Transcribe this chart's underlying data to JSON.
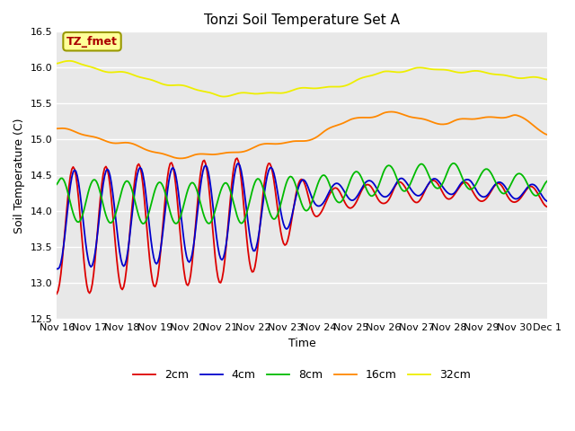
{
  "title": "Tonzi Soil Temperature Set A",
  "xlabel": "Time",
  "ylabel": "Soil Temperature (C)",
  "ylim": [
    12.5,
    16.5
  ],
  "annotation": "TZ_fmet",
  "annotation_color": "#aa0000",
  "annotation_bg": "#ffff99",
  "xtick_labels": [
    "Nov 16",
    "Nov 17",
    "Nov 18",
    "Nov 19",
    "Nov 20",
    "Nov 21",
    "Nov 22",
    "Nov 23",
    "Nov 24",
    "Nov 25",
    "Nov 26",
    "Nov 27",
    "Nov 28",
    "Nov 29",
    "Nov 30",
    "Dec 1"
  ],
  "series_colors": [
    "#dd0000",
    "#0000cc",
    "#00bb00",
    "#ff8800",
    "#eeee00"
  ],
  "series_labels": [
    "2cm",
    "4cm",
    "8cm",
    "16cm",
    "32cm"
  ]
}
